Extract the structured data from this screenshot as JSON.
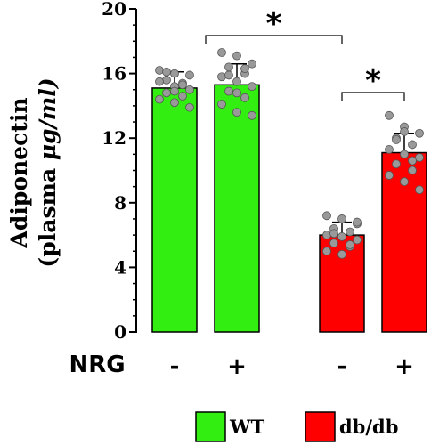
{
  "chart_data": {
    "type": "bar",
    "ylabel_line1": "Adiponectin",
    "ylabel_line2_prefix": "(plasma ",
    "ylabel_line2_unit": "μg/ml)",
    "ylim": [
      0,
      20
    ],
    "yticks": [
      0,
      4,
      8,
      12,
      16,
      20
    ],
    "factor_label": "NRG",
    "categories": [
      "-",
      "+",
      "-",
      "+"
    ],
    "groups": [
      "WT",
      "WT",
      "db/db",
      "db/db"
    ],
    "values": [
      15.1,
      15.3,
      6.0,
      11.1
    ],
    "errors": [
      1.0,
      1.3,
      0.8,
      1.2
    ],
    "points": [
      [
        16.2,
        16.0,
        15.9,
        15.6,
        15.4,
        15.5,
        15.2,
        15.0,
        14.8,
        14.6,
        14.4,
        14.2,
        13.9,
        16.1,
        15.3,
        14.9
      ],
      [
        17.3,
        17.1,
        16.6,
        16.4,
        16.0,
        15.8,
        15.5,
        15.2,
        14.9,
        14.5,
        14.1,
        13.6,
        13.4,
        15.9,
        16.3,
        14.8
      ],
      [
        7.2,
        7.0,
        6.7,
        6.4,
        6.2,
        6.0,
        5.9,
        5.7,
        5.5,
        5.3,
        5.0,
        4.8,
        6.8,
        6.1,
        5.4
      ],
      [
        13.4,
        12.7,
        12.3,
        12.0,
        11.6,
        11.3,
        11.0,
        10.8,
        10.4,
        10.0,
        9.7,
        9.3,
        8.8,
        11.9,
        10.6,
        12.4
      ]
    ],
    "significance": [
      {
        "from": 0,
        "to": 2,
        "label": "*"
      },
      {
        "from": 2,
        "to": 3,
        "label": "*"
      }
    ],
    "legend": [
      {
        "label": "WT",
        "color": "#33ee11"
      },
      {
        "label": "db/db",
        "color": "#ff0000"
      }
    ],
    "colors": {
      "WT": "#33ee11",
      "db/db": "#ff0000",
      "point": "#999999"
    },
    "legend_position": "bottom"
  }
}
